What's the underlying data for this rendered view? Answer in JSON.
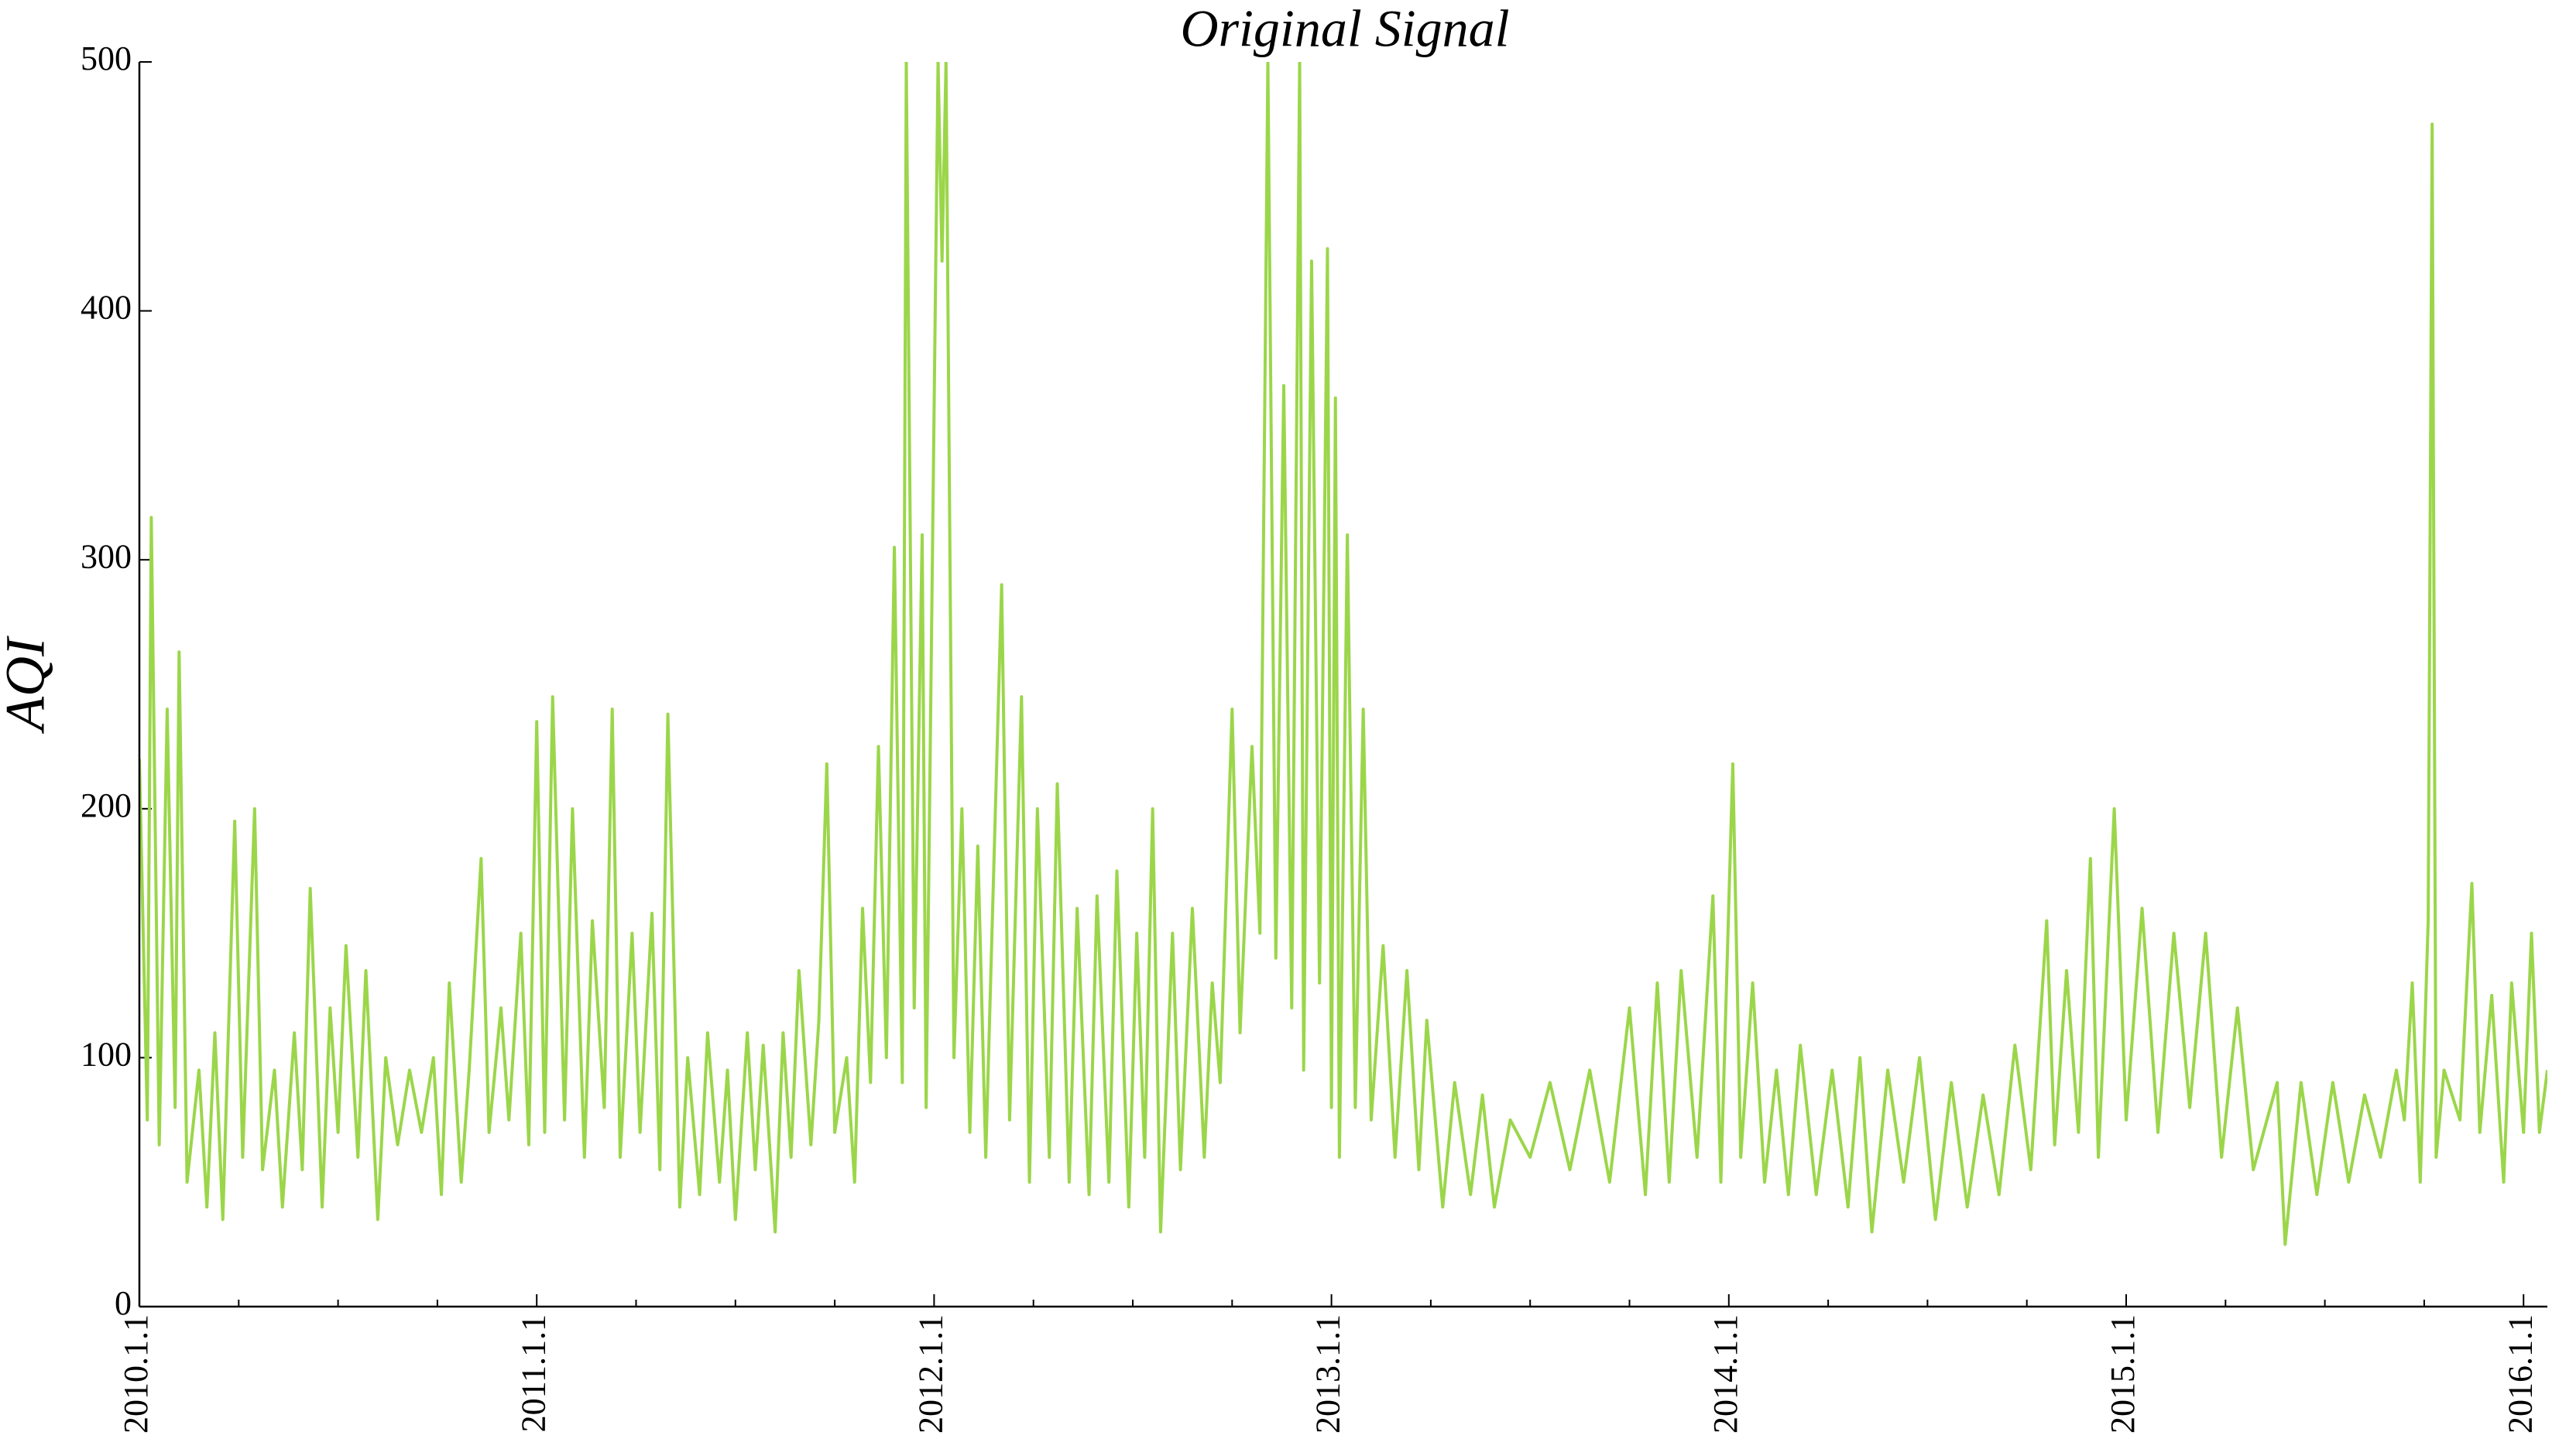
{
  "chart_data": {
    "type": "line",
    "title": "Original Signal",
    "y_label": "AQI",
    "x": [
      2010.0,
      2010.02,
      2010.03,
      2010.05,
      2010.07,
      2010.09,
      2010.1,
      2010.12,
      2010.15,
      2010.17,
      2010.19,
      2010.21,
      2010.24,
      2010.26,
      2010.29,
      2010.31,
      2010.34,
      2010.36,
      2010.39,
      2010.41,
      2010.43,
      2010.46,
      2010.48,
      2010.5,
      2010.52,
      2010.55,
      2010.57,
      2010.6,
      2010.62,
      2010.65,
      2010.68,
      2010.71,
      2010.74,
      2010.76,
      2010.78,
      2010.81,
      2010.83,
      2010.86,
      2010.88,
      2010.91,
      2010.93,
      2010.96,
      2010.98,
      2011.0,
      2011.02,
      2011.04,
      2011.07,
      2011.09,
      2011.12,
      2011.14,
      2011.17,
      2011.19,
      2011.21,
      2011.24,
      2011.26,
      2011.29,
      2011.31,
      2011.33,
      2011.36,
      2011.38,
      2011.41,
      2011.43,
      2011.46,
      2011.48,
      2011.5,
      2011.53,
      2011.55,
      2011.57,
      2011.6,
      2011.62,
      2011.64,
      2011.66,
      2011.69,
      2011.71,
      2011.73,
      2011.75,
      2011.78,
      2011.8,
      2011.82,
      2011.84,
      2011.86,
      2011.88,
      2011.9,
      2011.92,
      2011.93,
      2011.95,
      2011.97,
      2011.98,
      2012.01,
      2012.02,
      2012.03,
      2012.05,
      2012.07,
      2012.09,
      2012.11,
      2012.13,
      2012.17,
      2012.19,
      2012.22,
      2012.24,
      2012.26,
      2012.29,
      2012.31,
      2012.34,
      2012.36,
      2012.39,
      2012.41,
      2012.44,
      2012.46,
      2012.49,
      2012.51,
      2012.53,
      2012.55,
      2012.57,
      2012.6,
      2012.62,
      2012.65,
      2012.68,
      2012.7,
      2012.72,
      2012.75,
      2012.77,
      2012.8,
      2012.82,
      2012.84,
      2012.86,
      2012.88,
      2012.9,
      2012.92,
      2012.93,
      2012.95,
      2012.97,
      2012.99,
      2013.0,
      2013.01,
      2013.02,
      2013.04,
      2013.06,
      2013.08,
      2013.1,
      2013.13,
      2013.16,
      2013.19,
      2013.22,
      2013.24,
      2013.28,
      2013.31,
      2013.35,
      2013.38,
      2013.41,
      2013.45,
      2013.5,
      2013.55,
      2013.6,
      2013.65,
      2013.7,
      2013.75,
      2013.79,
      2013.82,
      2013.85,
      2013.88,
      2013.92,
      2013.96,
      2013.98,
      2014.01,
      2014.03,
      2014.06,
      2014.09,
      2014.12,
      2014.15,
      2014.18,
      2014.22,
      2014.26,
      2014.3,
      2014.33,
      2014.36,
      2014.4,
      2014.44,
      2014.48,
      2014.52,
      2014.56,
      2014.6,
      2014.64,
      2014.68,
      2014.72,
      2014.76,
      2014.8,
      2014.82,
      2014.85,
      2014.88,
      2014.91,
      2014.93,
      2014.97,
      2015.0,
      2015.04,
      2015.08,
      2015.12,
      2015.16,
      2015.2,
      2015.24,
      2015.28,
      2015.32,
      2015.38,
      2015.4,
      2015.44,
      2015.48,
      2015.52,
      2015.56,
      2015.6,
      2015.64,
      2015.68,
      2015.7,
      2015.72,
      2015.74,
      2015.76,
      2015.77,
      2015.78,
      2015.8,
      2015.84,
      2015.87,
      2015.89,
      2015.92,
      2015.95,
      2015.97,
      2016.0,
      2016.02,
      2016.04,
      2016.06
    ],
    "series": [
      {
        "color": "#9bd64a",
        "values": [
          220,
          75,
          317,
          65,
          240,
          80,
          263,
          50,
          95,
          40,
          110,
          35,
          195,
          60,
          200,
          55,
          95,
          40,
          110,
          55,
          168,
          40,
          120,
          70,
          145,
          60,
          135,
          35,
          100,
          65,
          95,
          70,
          100,
          45,
          130,
          50,
          95,
          180,
          70,
          120,
          75,
          150,
          65,
          235,
          70,
          245,
          75,
          200,
          60,
          155,
          80,
          240,
          60,
          150,
          70,
          158,
          55,
          238,
          40,
          100,
          45,
          110,
          50,
          95,
          35,
          110,
          55,
          105,
          30,
          110,
          60,
          135,
          65,
          115,
          218,
          70,
          100,
          50,
          160,
          90,
          225,
          100,
          305,
          90,
          500,
          120,
          310,
          80,
          500,
          420,
          500,
          100,
          200,
          70,
          185,
          60,
          290,
          75,
          245,
          50,
          200,
          60,
          210,
          50,
          160,
          45,
          165,
          50,
          175,
          40,
          150,
          60,
          200,
          30,
          150,
          55,
          160,
          60,
          130,
          90,
          240,
          110,
          225,
          150,
          500,
          140,
          370,
          120,
          500,
          95,
          420,
          130,
          425,
          80,
          365,
          60,
          310,
          80,
          240,
          75,
          145,
          60,
          135,
          55,
          115,
          40,
          90,
          45,
          85,
          40,
          75,
          60,
          90,
          55,
          95,
          50,
          120,
          45,
          130,
          50,
          135,
          60,
          165,
          50,
          218,
          60,
          130,
          50,
          95,
          45,
          105,
          45,
          95,
          40,
          100,
          30,
          95,
          50,
          100,
          35,
          90,
          40,
          85,
          45,
          105,
          55,
          155,
          65,
          135,
          70,
          180,
          60,
          200,
          75,
          160,
          70,
          150,
          80,
          150,
          60,
          120,
          55,
          90,
          25,
          90,
          45,
          90,
          50,
          85,
          60,
          95,
          75,
          130,
          50,
          155,
          475,
          60,
          95,
          75,
          170,
          70,
          125,
          50,
          130,
          70,
          150,
          70,
          95
        ]
      }
    ],
    "xlim": [
      2010,
      2016.06
    ],
    "ylim": [
      0,
      500
    ],
    "xticks": [
      {
        "value": 2010,
        "label": "2010.1.1"
      },
      {
        "value": 2011,
        "label": "2011.1.1"
      },
      {
        "value": 2012,
        "label": "2012.1.1"
      },
      {
        "value": 2013,
        "label": "2013.1.1"
      },
      {
        "value": 2014,
        "label": "2014.1.1"
      },
      {
        "value": 2015,
        "label": "2015.1.1"
      },
      {
        "value": 2016,
        "label": "2016.1.1"
      }
    ],
    "xminorticks": [
      2010.25,
      2010.5,
      2010.75,
      2011.25,
      2011.5,
      2011.75,
      2012.25,
      2012.5,
      2012.75,
      2013.25,
      2013.5,
      2013.75,
      2014.25,
      2014.5,
      2014.75,
      2015.25,
      2015.5,
      2015.75
    ],
    "yticks": [
      0,
      100,
      200,
      300,
      400,
      500
    ],
    "grid": false
  }
}
